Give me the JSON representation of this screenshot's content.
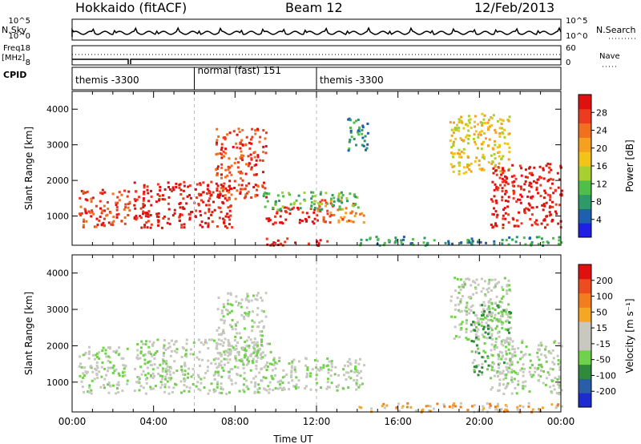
{
  "header": {
    "title": "Hokkaido (fitACF)",
    "beam": "Beam 12",
    "date": "12/Feb/2013"
  },
  "strip": {
    "nsky_label": "N.Sky",
    "nsky_ticks": [
      "10^5",
      "10^0"
    ],
    "nsearch_label": "N.Search",
    "nsearch_ticks": [
      "10^5",
      "10^0"
    ],
    "freq_label": "Freq.",
    "freq_unit": "[MHz]",
    "freq_ticks": [
      "18",
      "8"
    ],
    "nave_label": "Nave",
    "nave_ticks": [
      "60",
      "0"
    ],
    "cpid_label": "CPID",
    "cpid_segments": [
      {
        "label": "themis -3300",
        "start": 0,
        "end": 6
      },
      {
        "label": "normal (fast) 151",
        "start": 6,
        "end": 12
      },
      {
        "label": "themis -3300",
        "start": 12,
        "end": 24
      }
    ]
  },
  "chart_data": [
    {
      "type": "heatmap",
      "name": "power",
      "title": "",
      "ylabel": "Slant Range [km]",
      "xlim": [
        0,
        24
      ],
      "ylim": [
        180,
        4500
      ],
      "yticks": [
        "1000",
        "2000",
        "3000",
        "4000"
      ],
      "colorbar": {
        "label": "Power [dB]",
        "ticks": [
          "4",
          "8",
          "12",
          "16",
          "20",
          "24",
          "28"
        ],
        "colors": [
          "#1f1fe6",
          "#1e5fb0",
          "#2e9a6a",
          "#4fbf4a",
          "#a8cf30",
          "#f2c417",
          "#f5a01e",
          "#f07020",
          "#ec3b1e",
          "#e01010"
        ]
      },
      "regions": [
        {
          "t": [
            0.3,
            2.8
          ],
          "r": [
            700,
            1800
          ],
          "level": 8
        },
        {
          "t": [
            3.0,
            7.8
          ],
          "r": [
            700,
            2000
          ],
          "level": 9
        },
        {
          "t": [
            7.0,
            9.5
          ],
          "r": [
            1500,
            3500
          ],
          "level": 8
        },
        {
          "t": [
            9.5,
            12.0
          ],
          "r": [
            800,
            1300
          ],
          "level": 9
        },
        {
          "t": [
            12.0,
            14.3
          ],
          "r": [
            850,
            1500
          ],
          "level": 7
        },
        {
          "t": [
            9.3,
            14.0
          ],
          "r": [
            1200,
            1700
          ],
          "level": 3
        },
        {
          "t": [
            13.5,
            14.5
          ],
          "r": [
            2800,
            3800
          ],
          "level": 2
        },
        {
          "t": [
            18.5,
            21.5
          ],
          "r": [
            2200,
            3900
          ],
          "level": 5
        },
        {
          "t": [
            20.5,
            24.0
          ],
          "r": [
            700,
            2500
          ],
          "level": 9
        },
        {
          "t": [
            14.0,
            24.0
          ],
          "r": [
            200,
            450
          ],
          "level": 2
        },
        {
          "t": [
            9.5,
            12.5
          ],
          "r": [
            200,
            400
          ],
          "level": 9
        }
      ]
    },
    {
      "type": "heatmap",
      "name": "velocity",
      "title": "",
      "ylabel": "Slant Range [km]",
      "xlabel": "Time UT",
      "xlim": [
        0,
        24
      ],
      "ylim": [
        180,
        4500
      ],
      "xticks": [
        "00:00",
        "04:00",
        "08:00",
        "12:00",
        "16:00",
        "20:00",
        "00:00"
      ],
      "yticks": [
        "1000",
        "2000",
        "3000",
        "4000"
      ],
      "colorbar": {
        "label": "Velocity [m s⁻¹]",
        "ticks": [
          "200",
          "100",
          "50",
          "15",
          "-15",
          "-50",
          "-100",
          "-200"
        ],
        "colors": [
          "#1e2bd0",
          "#2a5fa8",
          "#2f8b3c",
          "#6fd24a",
          "#c8c8c0",
          "#c8c8c0",
          "#f5a623",
          "#f27d1e",
          "#ec4c1e",
          "#e01010"
        ]
      },
      "regions": [
        {
          "t": [
            0.3,
            2.8
          ],
          "r": [
            700,
            2000
          ],
          "level": 4
        },
        {
          "t": [
            3.0,
            9.8
          ],
          "r": [
            700,
            2200
          ],
          "level": 4
        },
        {
          "t": [
            7.0,
            9.5
          ],
          "r": [
            1500,
            3500
          ],
          "level": 4
        },
        {
          "t": [
            9.5,
            14.3
          ],
          "r": [
            800,
            1700
          ],
          "level": 4
        },
        {
          "t": [
            18.5,
            21.5
          ],
          "r": [
            2200,
            3900
          ],
          "level": 4
        },
        {
          "t": [
            19.5,
            21.5
          ],
          "r": [
            1200,
            3200
          ],
          "level": 3
        },
        {
          "t": [
            20.5,
            24.0
          ],
          "r": [
            700,
            2200
          ],
          "level": 4
        },
        {
          "t": [
            14.0,
            24.0
          ],
          "r": [
            200,
            450
          ],
          "level": 6
        }
      ]
    }
  ]
}
